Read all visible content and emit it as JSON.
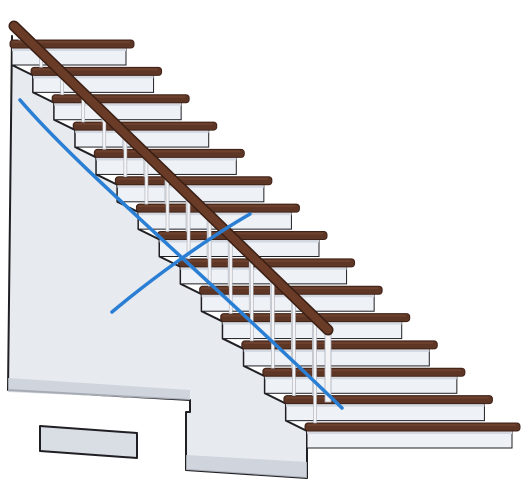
{
  "illustration": {
    "subject": "staircase",
    "step_count": 15,
    "colors": {
      "tread": "#5e3626",
      "tread_edge": "#3f2217",
      "riser": "#eef1f6",
      "riser_shadow": "#d3d8e1",
      "side_wall": "#e7eaef",
      "side_wall_shade": "#c9ced8",
      "outline": "#1f1f24",
      "handrail": "#6a3b27",
      "baluster": "#f4f4f6",
      "scribble": "#2a7fd4",
      "base_plate": "#d9dde4"
    }
  }
}
